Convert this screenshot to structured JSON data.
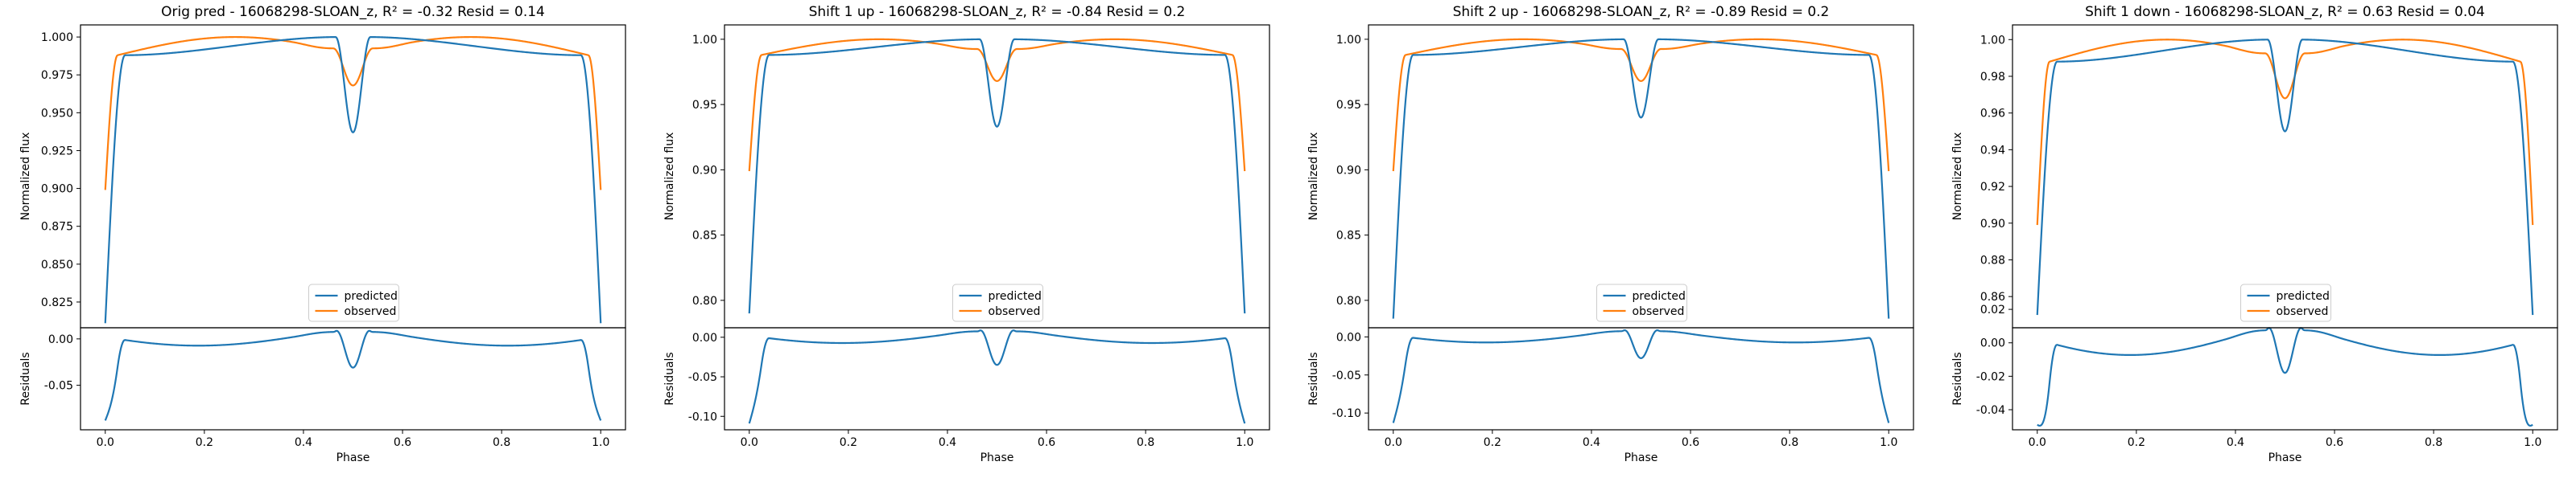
{
  "chart_data": [
    {
      "type": "line",
      "title": "Orig pred - 16068298-SLOAN_z, R² = -0.32 Resid = 0.14",
      "ylabel": "Normalized flux",
      "resid_ylabel": "Residuals",
      "xlabel": "Phase",
      "xlim": [
        -0.05,
        1.05
      ],
      "ylim": [
        0.808,
        1.008
      ],
      "resid_ylim": [
        -0.098,
        0.012
      ],
      "xticks": [
        0.0,
        0.2,
        0.4,
        0.6,
        0.8,
        1.0
      ],
      "yticks": [
        0.825,
        0.85,
        0.875,
        0.9,
        0.925,
        0.95,
        0.975,
        1.0
      ],
      "ytick_decimals": 3,
      "resid_yticks": [
        -0.05,
        0.0
      ],
      "resid_ytick_decimals": 2,
      "legend": {
        "placement": "lower-center",
        "entries": [
          "predicted",
          "observed"
        ]
      },
      "series": [
        {
          "name": "predicted",
          "color": "#1f77b4",
          "params": {
            "top": 1.0,
            "shoulder": 0.988,
            "bottom": 0.811,
            "dip": 0.937
          }
        },
        {
          "name": "observed",
          "color": "#ff7f0e",
          "params": {
            "top": 1.0,
            "shoulder": 0.988,
            "edge": 0.899,
            "dip": 0.968
          }
        }
      ]
    },
    {
      "type": "line",
      "title": "Shift 1 up - 16068298-SLOAN_z, R² = -0.84 Resid = 0.2",
      "ylabel": "Normalized flux",
      "resid_ylabel": "Residuals",
      "xlabel": "Phase",
      "xlim": [
        -0.05,
        1.05
      ],
      "ylim": [
        0.779,
        1.011
      ],
      "resid_ylim": [
        -0.117,
        0.012
      ],
      "xticks": [
        0.0,
        0.2,
        0.4,
        0.6,
        0.8,
        1.0
      ],
      "yticks": [
        0.8,
        0.85,
        0.9,
        0.95,
        1.0
      ],
      "ytick_decimals": 2,
      "resid_yticks": [
        -0.1,
        -0.05,
        0.0
      ],
      "resid_ytick_decimals": 2,
      "legend": {
        "placement": "lower-center",
        "entries": [
          "predicted",
          "observed"
        ]
      },
      "series": [
        {
          "name": "predicted",
          "color": "#1f77b4",
          "params": {
            "top": 1.0,
            "shoulder": 0.988,
            "bottom": 0.79,
            "dip": 0.933
          }
        },
        {
          "name": "observed",
          "color": "#ff7f0e",
          "params": {
            "top": 1.0,
            "shoulder": 0.988,
            "edge": 0.899,
            "dip": 0.968
          }
        }
      ]
    },
    {
      "type": "line",
      "title": "Shift 2 up - 16068298-SLOAN_z, R² = -0.89 Resid = 0.2",
      "ylabel": "Normalized flux",
      "resid_ylabel": "Residuals",
      "xlabel": "Phase",
      "xlim": [
        -0.05,
        1.05
      ],
      "ylim": [
        0.779,
        1.011
      ],
      "resid_ylim": [
        -0.122,
        0.012
      ],
      "xticks": [
        0.0,
        0.2,
        0.4,
        0.6,
        0.8,
        1.0
      ],
      "yticks": [
        0.8,
        0.85,
        0.9,
        0.95,
        1.0
      ],
      "ytick_decimals": 2,
      "resid_yticks": [
        -0.1,
        -0.05,
        0.0
      ],
      "resid_ytick_decimals": 2,
      "legend": {
        "placement": "lower-center",
        "entries": [
          "predicted",
          "observed"
        ]
      },
      "series": [
        {
          "name": "predicted",
          "color": "#1f77b4",
          "params": {
            "top": 1.0,
            "shoulder": 0.988,
            "bottom": 0.786,
            "dip": 0.94
          }
        },
        {
          "name": "observed",
          "color": "#ff7f0e",
          "params": {
            "top": 1.0,
            "shoulder": 0.988,
            "edge": 0.899,
            "dip": 0.968
          }
        }
      ]
    },
    {
      "type": "line",
      "title": "Shift 1 down - 16068298-SLOAN_z, R² = 0.63 Resid = 0.04",
      "ylabel": "Normalized flux",
      "resid_ylabel": "Residuals",
      "xlabel": "Phase",
      "xlim": [
        -0.05,
        1.05
      ],
      "ylim": [
        0.843,
        1.008
      ],
      "resid_ylim": [
        -0.052,
        0.009
      ],
      "xticks": [
        0.0,
        0.2,
        0.4,
        0.6,
        0.8,
        1.0
      ],
      "yticks": [
        0.86,
        0.88,
        0.9,
        0.92,
        0.94,
        0.96,
        0.98,
        1.0
      ],
      "ytick_decimals": 2,
      "resid_yticks": [
        -0.04,
        -0.02,
        0.0,
        0.02
      ],
      "resid_ytick_decimals": 2,
      "legend": {
        "placement": "lower-center",
        "entries": [
          "predicted",
          "observed"
        ]
      },
      "series": [
        {
          "name": "predicted",
          "color": "#1f77b4",
          "params": {
            "top": 1.0,
            "shoulder": 0.988,
            "bottom": 0.85,
            "dip": 0.95
          }
        },
        {
          "name": "observed",
          "color": "#ff7f0e",
          "params": {
            "top": 1.0,
            "shoulder": 0.988,
            "edge": 0.899,
            "dip": 0.968
          }
        }
      ]
    }
  ]
}
